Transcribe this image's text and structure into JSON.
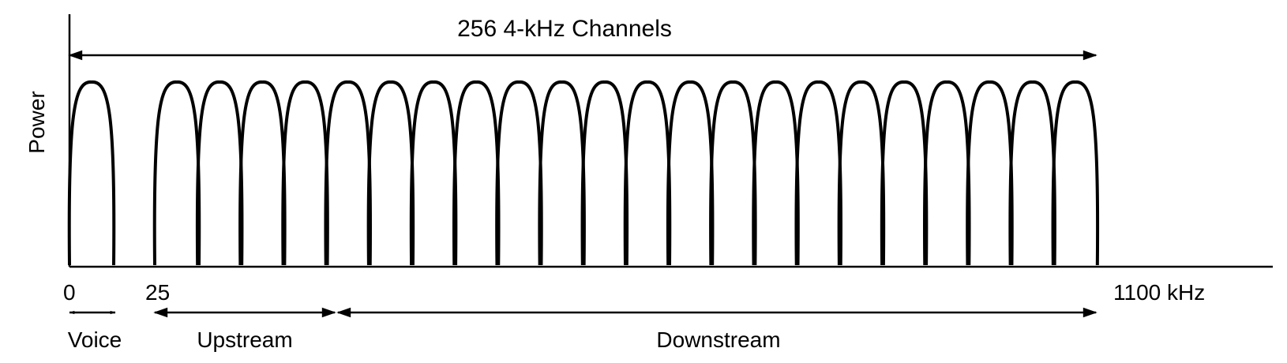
{
  "title": "256 4-kHz Channels",
  "y_axis_label": "Power",
  "x_ticks": {
    "zero": "0",
    "start": "25",
    "end": "1100 kHz"
  },
  "bands": {
    "voice": "Voice",
    "upstream": "Upstream",
    "downstream": "Downstream"
  },
  "channel_groups": {
    "voice": 1,
    "upstream": 4,
    "downstream": 18
  },
  "colors": {
    "ink": "#000000",
    "background": "#ffffff"
  }
}
